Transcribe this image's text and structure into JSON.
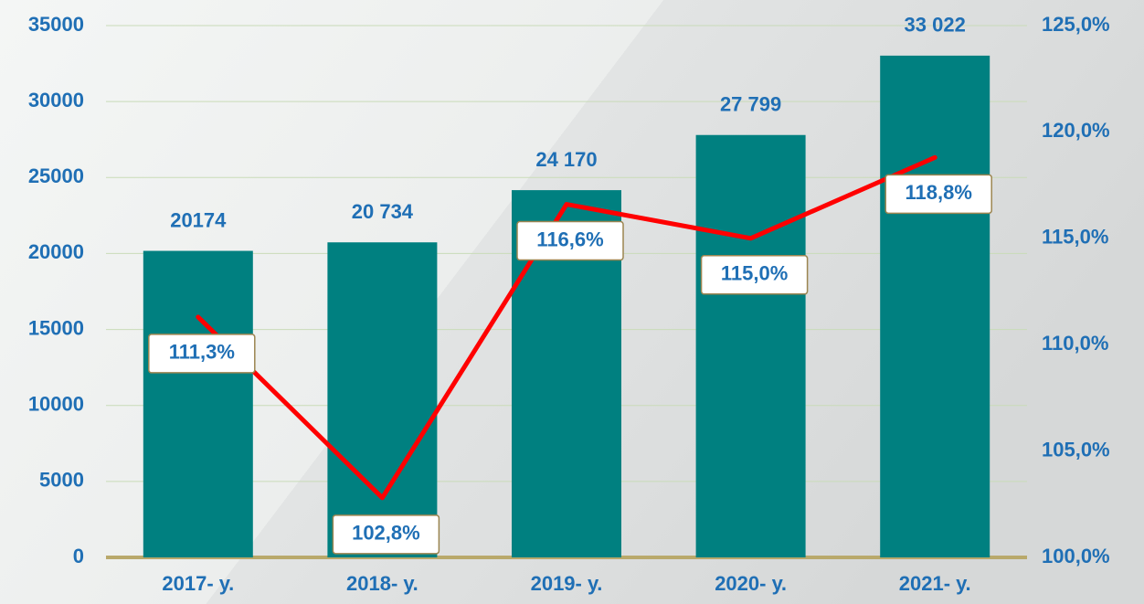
{
  "chart_data": {
    "type": "bar",
    "categories": [
      "2017- у.",
      "2018- у.",
      "2019- у.",
      "2020- у.",
      "2021- у."
    ],
    "series": [
      {
        "type": "bar",
        "color": "#008080",
        "values": [
          20174,
          20734,
          24170,
          27799,
          33022
        ],
        "value_labels": [
          "20174",
          "20 734",
          "24 170",
          "27 799",
          "33 022"
        ]
      },
      {
        "type": "line",
        "axis": "y2",
        "color": "#ff0000",
        "values": [
          111.3,
          102.8,
          116.6,
          115.0,
          118.8
        ],
        "value_labels": [
          "111,3%",
          "102,8%",
          "116,6%",
          "115,0%",
          "118,8%"
        ]
      }
    ],
    "ylim": [
      0,
      35000
    ],
    "yticks": [
      0,
      5000,
      10000,
      15000,
      20000,
      25000,
      30000,
      35000
    ],
    "y2lim": [
      100,
      125
    ],
    "y2ticks": [
      {
        "value": 100,
        "label": "100,0%"
      },
      {
        "value": 105,
        "label": "105,0%"
      },
      {
        "value": 110,
        "label": "110,0%"
      },
      {
        "value": 115,
        "label": "115,0%"
      },
      {
        "value": 120,
        "label": "120,0%"
      },
      {
        "value": 125,
        "label": "125,0%"
      }
    ],
    "grid": true
  }
}
